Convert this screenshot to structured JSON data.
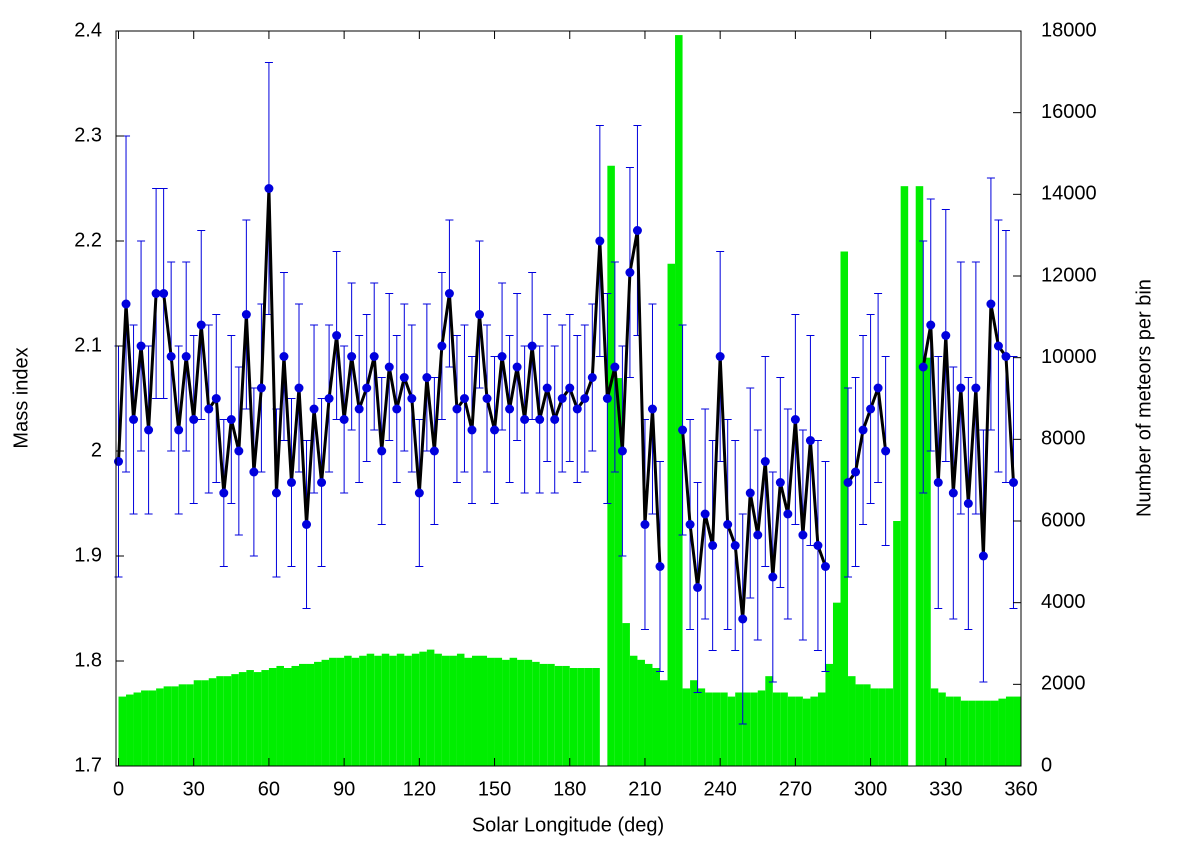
{
  "chart_data": {
    "type": "line",
    "x_label": "Solar Longitude (deg)",
    "y_label": "Mass index",
    "y2_label": "Number of meteors per bin",
    "x": [
      0,
      3,
      6,
      9,
      12,
      15,
      18,
      21,
      24,
      27,
      30,
      33,
      36,
      39,
      42,
      45,
      48,
      51,
      54,
      57,
      60,
      63,
      66,
      69,
      72,
      75,
      78,
      81,
      84,
      87,
      90,
      93,
      96,
      99,
      102,
      105,
      108,
      111,
      114,
      117,
      120,
      123,
      126,
      129,
      132,
      135,
      138,
      141,
      144,
      147,
      150,
      153,
      156,
      159,
      162,
      165,
      168,
      171,
      174,
      177,
      180,
      183,
      186,
      189,
      192,
      195,
      198,
      201,
      204,
      207,
      210,
      213,
      216,
      219,
      222,
      225,
      228,
      231,
      234,
      237,
      240,
      243,
      246,
      249,
      252,
      255,
      258,
      261,
      264,
      267,
      270,
      273,
      276,
      279,
      282,
      285,
      288,
      291,
      294,
      297,
      300,
      303,
      306,
      309,
      312,
      315,
      318,
      321,
      324,
      327,
      330,
      333,
      336,
      339,
      342,
      345,
      348,
      351,
      354,
      357
    ],
    "xlim": [
      -1,
      360
    ],
    "xticks": [
      0,
      30,
      60,
      90,
      120,
      150,
      180,
      210,
      240,
      270,
      300,
      330,
      360
    ],
    "ylim": [
      1.7,
      2.4
    ],
    "yticks": [
      1.7,
      1.8,
      1.9,
      2,
      2.1,
      2.2,
      2.3,
      2.4
    ],
    "y2lim": [
      0,
      18000
    ],
    "y2ticks": [
      0,
      2000,
      4000,
      6000,
      8000,
      10000,
      12000,
      14000,
      16000,
      18000
    ],
    "series": [
      {
        "type": "bar",
        "axis": "y2",
        "color": "#00ee00",
        "values": [
          1700,
          1750,
          1800,
          1850,
          1850,
          1900,
          1950,
          1950,
          2000,
          2000,
          2100,
          2100,
          2150,
          2200,
          2200,
          2250,
          2300,
          2350,
          2300,
          2350,
          2400,
          2450,
          2400,
          2450,
          2500,
          2500,
          2550,
          2600,
          2650,
          2650,
          2700,
          2650,
          2700,
          2750,
          2700,
          2750,
          2700,
          2750,
          2700,
          2750,
          2800,
          2850,
          2750,
          2700,
          2700,
          2750,
          2650,
          2700,
          2700,
          2650,
          2650,
          2600,
          2650,
          2600,
          2600,
          2550,
          2500,
          2500,
          2450,
          2450,
          2400,
          2400,
          2400,
          2400,
          0,
          14700,
          9500,
          3500,
          2700,
          2600,
          2500,
          2400,
          2100,
          12300,
          17900,
          1900,
          2100,
          1900,
          1800,
          1800,
          1800,
          1700,
          1800,
          1800,
          1800,
          1850,
          2200,
          1800,
          1800,
          1700,
          1700,
          1650,
          1700,
          1800,
          2500,
          4000,
          12600,
          2200,
          2000,
          2000,
          1900,
          1900,
          1900,
          6000,
          14200,
          0,
          14200,
          10000,
          1900,
          1800,
          1700,
          1700,
          1600,
          1600,
          1600,
          1600,
          1600,
          1650,
          1700,
          1700
        ]
      },
      {
        "type": "line",
        "color": "#0000dd",
        "line_color": "#000000",
        "values": [
          1.99,
          2.14,
          2.03,
          2.1,
          2.02,
          2.15,
          2.15,
          2.09,
          2.02,
          2.09,
          2.03,
          2.12,
          2.04,
          2.05,
          1.96,
          2.03,
          2.0,
          2.13,
          1.98,
          2.06,
          2.25,
          1.96,
          2.09,
          1.97,
          2.06,
          1.93,
          2.04,
          1.97,
          2.05,
          2.11,
          2.03,
          2.09,
          2.04,
          2.06,
          2.09,
          2.0,
          2.08,
          2.04,
          2.07,
          2.05,
          1.96,
          2.07,
          2.0,
          2.1,
          2.15,
          2.04,
          2.05,
          2.02,
          2.13,
          2.05,
          2.02,
          2.09,
          2.04,
          2.08,
          2.03,
          2.1,
          2.03,
          2.06,
          2.03,
          2.05,
          2.06,
          2.04,
          2.05,
          2.07,
          2.2,
          2.05,
          2.08,
          2.0,
          2.17,
          2.21,
          1.93,
          2.04,
          1.89,
          null,
          null,
          2.02,
          1.93,
          1.87,
          1.94,
          1.91,
          2.09,
          1.93,
          1.91,
          1.84,
          1.96,
          1.92,
          1.99,
          1.88,
          1.97,
          1.94,
          2.03,
          1.92,
          2.01,
          1.91,
          1.89,
          null,
          null,
          1.97,
          1.98,
          2.02,
          2.04,
          2.06,
          2.0,
          null,
          null,
          null,
          null,
          2.08,
          2.12,
          1.97,
          2.11,
          1.96,
          2.06,
          1.95,
          2.06,
          1.9,
          2.14,
          2.1,
          2.09,
          1.97
        ],
        "errors": [
          0.11,
          0.16,
          0.09,
          0.1,
          0.08,
          0.1,
          0.1,
          0.09,
          0.08,
          0.09,
          0.08,
          0.09,
          0.08,
          0.08,
          0.07,
          0.08,
          0.08,
          0.09,
          0.08,
          0.08,
          0.12,
          0.08,
          0.08,
          0.08,
          0.08,
          0.08,
          0.08,
          0.08,
          0.07,
          0.08,
          0.07,
          0.07,
          0.07,
          0.07,
          0.07,
          0.07,
          0.07,
          0.07,
          0.07,
          0.07,
          0.07,
          0.07,
          0.07,
          0.07,
          0.07,
          0.07,
          0.07,
          0.07,
          0.07,
          0.07,
          0.07,
          0.07,
          0.07,
          0.07,
          0.07,
          0.07,
          0.07,
          0.07,
          0.07,
          0.07,
          0.07,
          0.07,
          0.07,
          0.07,
          0.11,
          0.1,
          0.1,
          0.1,
          0.1,
          0.1,
          0.1,
          0.1,
          0.1,
          null,
          null,
          0.1,
          0.1,
          0.1,
          0.1,
          0.1,
          0.1,
          0.1,
          0.1,
          0.1,
          0.1,
          0.1,
          0.1,
          0.1,
          0.1,
          0.1,
          0.1,
          0.1,
          0.1,
          0.1,
          0.1,
          null,
          null,
          0.09,
          0.09,
          0.09,
          0.09,
          0.09,
          0.09,
          null,
          null,
          null,
          null,
          0.12,
          0.12,
          0.12,
          0.12,
          0.12,
          0.12,
          0.12,
          0.12,
          0.12,
          0.12,
          0.12,
          0.12,
          0.12
        ]
      }
    ]
  }
}
